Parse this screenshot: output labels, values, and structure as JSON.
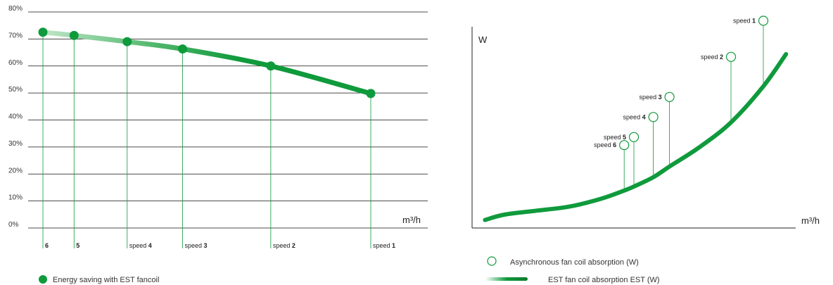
{
  "colors": {
    "green": "#0f9a3c",
    "light_green": "#8fd19e",
    "grid": "#111111"
  },
  "chart_data": [
    {
      "type": "line",
      "y_unit": "%",
      "ylim": [
        0,
        80
      ],
      "y_ticks": [
        "0%",
        "10%",
        "20%",
        "30%",
        "40%",
        "50%",
        "60%",
        "70%",
        "80%"
      ],
      "y_tick_values": [
        0,
        10,
        20,
        30,
        40,
        50,
        60,
        70,
        80
      ],
      "xlabel": "m³/h",
      "grid": true,
      "legend": "bottom-left",
      "series": [
        {
          "name": "Energy saving with EST fancoil",
          "points": [
            {
              "label_prefix": "",
              "label_num": "6",
              "x": 0.0,
              "y": 72.5
            },
            {
              "label_prefix": "",
              "label_num": "5",
              "x": 0.095,
              "y": 71.3
            },
            {
              "label_prefix": "speed ",
              "label_num": "4",
              "x": 0.257,
              "y": 69.0
            },
            {
              "label_prefix": "speed ",
              "label_num": "3",
              "x": 0.426,
              "y": 66.3
            },
            {
              "label_prefix": "speed ",
              "label_num": "2",
              "x": 0.695,
              "y": 60.0
            },
            {
              "label_prefix": "speed ",
              "label_num": "1",
              "x": 1.0,
              "y": 49.8
            }
          ]
        }
      ]
    },
    {
      "type": "line",
      "ylabel": "W",
      "xlabel": "m³/h",
      "legend": "bottom",
      "series": [
        {
          "name": "Asynchronous fan coil absorption (W)",
          "marker": "hollow-circle",
          "points": [
            {
              "label_prefix": "speed ",
              "label_num": "6",
              "x": 0.47,
              "y": 0.62
            },
            {
              "label_prefix": "speed ",
              "label_num": "5",
              "x": 0.5,
              "y": 0.68
            },
            {
              "label_prefix": "speed ",
              "label_num": "4",
              "x": 0.56,
              "y": 0.83
            },
            {
              "label_prefix": "speed ",
              "label_num": "3",
              "x": 0.61,
              "y": 0.98
            },
            {
              "label_prefix": "speed ",
              "label_num": "2",
              "x": 0.8,
              "y": 1.28
            },
            {
              "label_prefix": "speed ",
              "label_num": "1",
              "x": 0.9,
              "y": 1.55
            }
          ]
        },
        {
          "name": "EST fan coil absorption EST (W)",
          "line_color": "#0f9a3c",
          "curve": [
            [
              0.04,
              0.06
            ],
            [
              0.1,
              0.1
            ],
            [
              0.2,
              0.13
            ],
            [
              0.3,
              0.16
            ],
            [
              0.4,
              0.22
            ],
            [
              0.47,
              0.28
            ],
            [
              0.5,
              0.31
            ],
            [
              0.56,
              0.38
            ],
            [
              0.61,
              0.46
            ],
            [
              0.7,
              0.6
            ],
            [
              0.8,
              0.79
            ],
            [
              0.9,
              1.06
            ],
            [
              0.97,
              1.3
            ]
          ],
          "speed_x": [
            0.47,
            0.5,
            0.56,
            0.61,
            0.8,
            0.9
          ]
        }
      ]
    }
  ]
}
